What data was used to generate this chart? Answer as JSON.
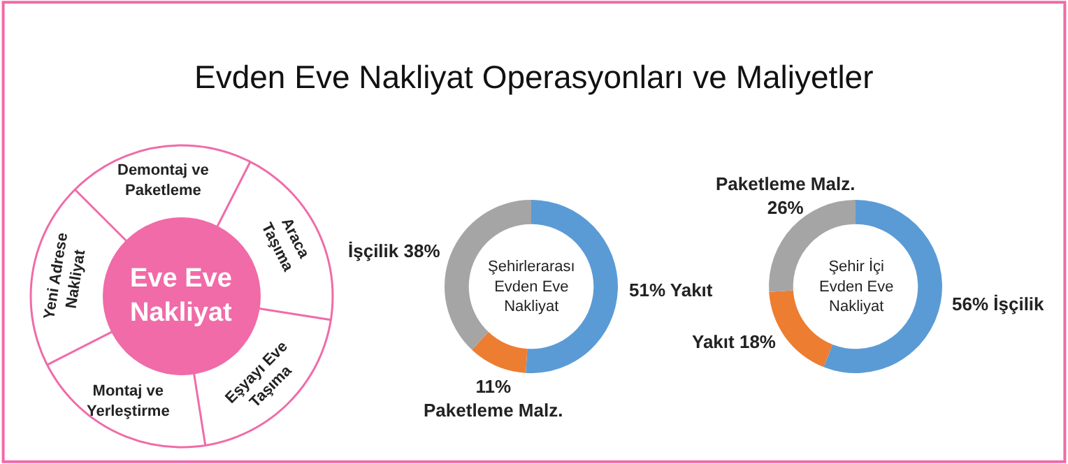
{
  "chart_data": [
    {
      "type": "other",
      "title": "Evden Eve Nakliyat Operasyonları ve Maliyetler",
      "color": "#f06ba8",
      "categories": [
        "Demontaj ve\nPaketleme",
        "Araca\nTaşıma",
        "Eşyayı Eve\nTaşıma",
        "Montaj ve\nYerleştirme",
        "Yeni Adrese\nNakliyat"
      ],
      "annotations": [
        "Eve Eve\nNakliyat"
      ]
    },
    {
      "type": "donut",
      "categories": [
        "Yakıt",
        "Paketleme Malz.",
        "İşçilik"
      ],
      "values": [
        51,
        11,
        38
      ],
      "colors": [
        "#5b9bd5",
        "#ed7d31",
        "#a5a5a5"
      ],
      "value_labels": [
        "51%",
        "11%",
        "38%"
      ],
      "annotations": [
        "Şehirlerarası\nEvden Eve\nNakliyat"
      ]
    },
    {
      "type": "donut",
      "categories": [
        "İşçilik",
        "Yakıt",
        "Paketleme Malz."
      ],
      "values": [
        56,
        18,
        26
      ],
      "colors": [
        "#5b9bd5",
        "#ed7d31",
        "#a5a5a5"
      ],
      "value_labels": [
        "56%",
        "18%",
        "26%"
      ],
      "annotations": [
        "Şehir İçi\nEvden Eve\nNakliyat"
      ]
    }
  ]
}
